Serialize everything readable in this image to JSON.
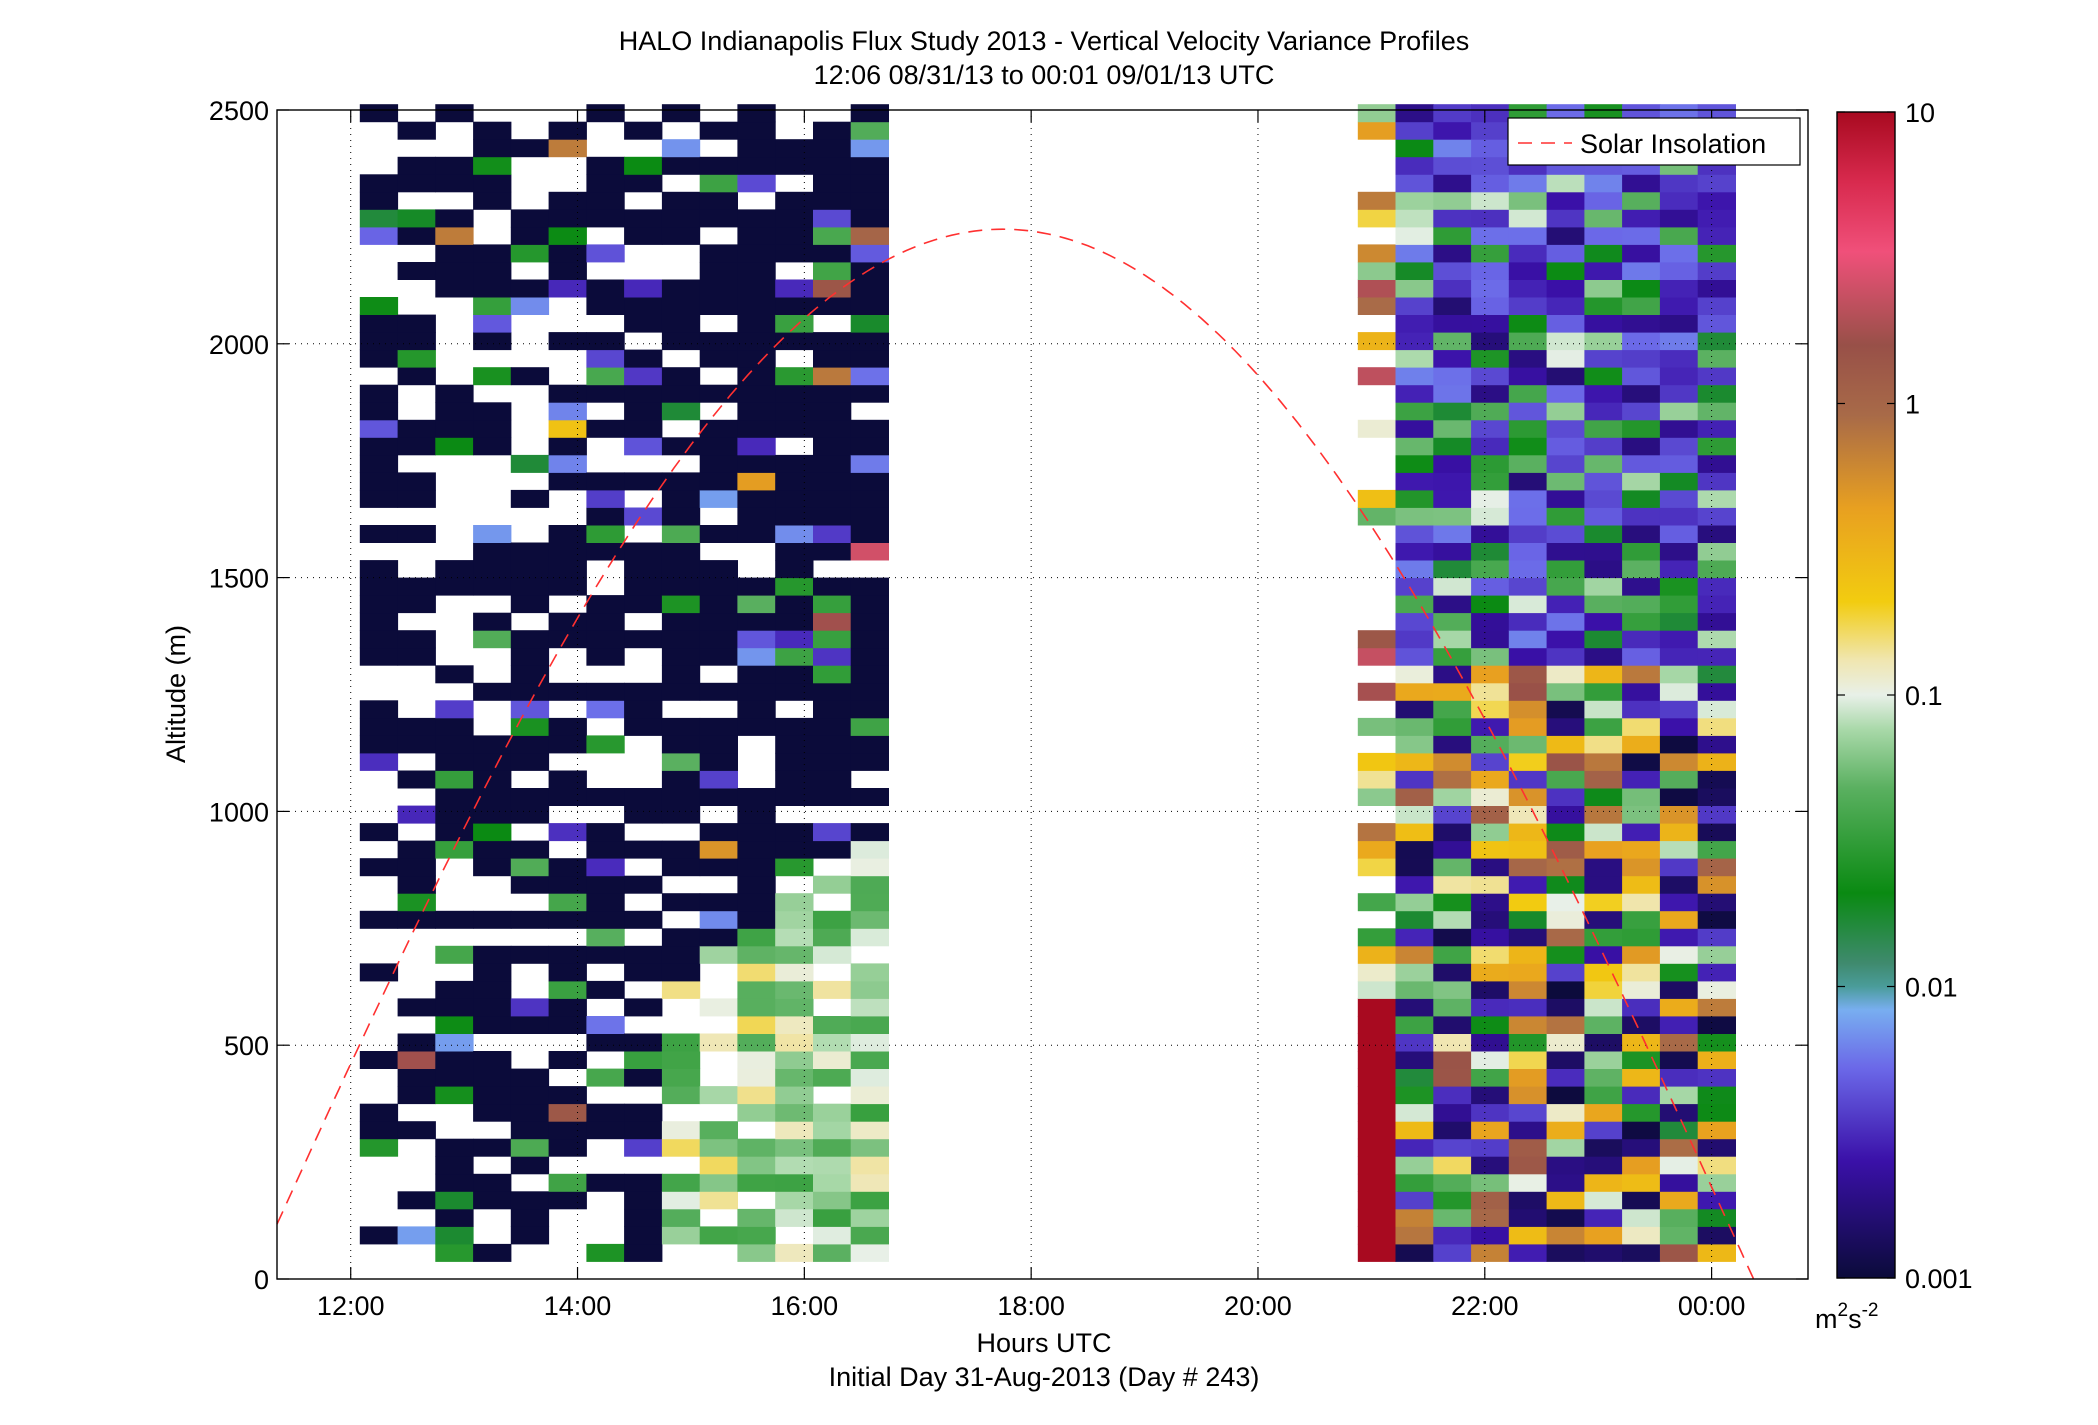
{
  "chart_data": {
    "type": "heatmap",
    "title": "HALO Indianapolis Flux Study 2013 - Vertical Velocity Variance Profiles",
    "subtitle": "12:06 08/31/13 to 00:01 09/01/13  UTC",
    "xlabel": "Hours UTC",
    "xlabel2": "Initial Day 31-Aug-2013 (Day # 243)",
    "ylabel": "Altitude (m)",
    "xlim": [
      11.35,
      24.85
    ],
    "ylim": [
      0,
      2500
    ],
    "xticks": [
      12,
      14,
      16,
      18,
      20,
      22,
      24
    ],
    "xtick_labels": [
      "12:00",
      "14:00",
      "16:00",
      "18:00",
      "20:00",
      "22:00",
      "00:00"
    ],
    "yticks": [
      0,
      500,
      1000,
      1500,
      2000,
      2500
    ],
    "ytick_labels": [
      "0",
      "500",
      "1000",
      "1500",
      "2000",
      "2500"
    ],
    "grid": true,
    "legend": {
      "entries": [
        "Solar Insolation"
      ],
      "position": "top-right"
    },
    "colorbar": {
      "scale": "log",
      "min": 0.001,
      "max": 10,
      "tick_values": [
        0.001,
        0.01,
        0.1,
        1,
        10
      ],
      "tick_labels": [
        "0.001",
        "0.01",
        "0.1",
        "1",
        "10"
      ],
      "units": "m²s⁻²",
      "unit_base": "m",
      "unit_exp1": "2",
      "unit_mid": "s",
      "unit_exp2": "-2"
    },
    "colormap_stops": [
      {
        "v": 0.0,
        "c": "#0b0b3a"
      },
      {
        "v": 0.1,
        "c": "#3a10a8"
      },
      {
        "v": 0.18,
        "c": "#6b68e8"
      },
      {
        "v": 0.23,
        "c": "#78aef0"
      },
      {
        "v": 0.25,
        "c": "#4a9c9a"
      },
      {
        "v": 0.27,
        "c": "#3f8a6e"
      },
      {
        "v": 0.33,
        "c": "#0a8a12"
      },
      {
        "v": 0.42,
        "c": "#5ab060"
      },
      {
        "v": 0.47,
        "c": "#a8d8a8"
      },
      {
        "v": 0.5,
        "c": "#e8f0e8"
      },
      {
        "v": 0.53,
        "c": "#f0e6b0"
      },
      {
        "v": 0.58,
        "c": "#f2cc10"
      },
      {
        "v": 0.66,
        "c": "#e8a020"
      },
      {
        "v": 0.74,
        "c": "#a86a48"
      },
      {
        "v": 0.8,
        "c": "#985048"
      },
      {
        "v": 0.88,
        "c": "#f0507a"
      },
      {
        "v": 0.94,
        "c": "#d82a4e"
      },
      {
        "v": 1.0,
        "c": "#a80a20"
      }
    ],
    "solar_insolation": {
      "peak_time": 17.75,
      "peak_altitude": 2245,
      "zero_time_left": 11.13,
      "zero_time_right": 24.37,
      "color": "#ff3030"
    },
    "profiles": {
      "time_step_hours": 0.333,
      "altitude_step_m": 37.5,
      "morning_start": 12.08,
      "morning_end": 16.42,
      "evening_start": 20.88,
      "evening_end": 24.03,
      "no_data_altitude_m": 2500
    }
  }
}
